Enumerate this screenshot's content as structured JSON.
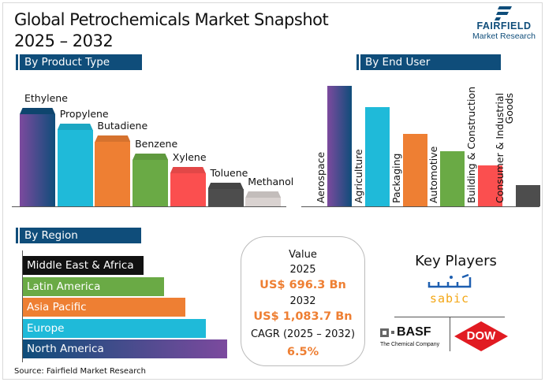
{
  "title_line1": "Global Petrochemicals Market Snapshot",
  "title_line2": "2025 – 2032",
  "logo": {
    "name": "FAIRFIELD",
    "sub": "Market Research"
  },
  "sections": {
    "product": "By Product Type",
    "end_user": "By End User",
    "region": "By Region"
  },
  "colors": {
    "navy": "#0f4d7a",
    "cyan": "#1fbad9",
    "orange": "#ee7f33",
    "green": "#6aaa45",
    "red": "#fb4f4f",
    "dark": "#4d4d4d",
    "light": "#d9d2d0",
    "purple": "#7c4a9e"
  },
  "chart_data": [
    {
      "type": "bar",
      "title": "By Product Type",
      "categories": [
        "Ethylene",
        "Propylene",
        "Butadiene",
        "Benzene",
        "Xylene",
        "Toluene",
        "Methanol"
      ],
      "values": [
        125,
        105,
        90,
        67,
        50,
        30,
        19
      ],
      "colors": [
        "grad",
        "#1fbad9",
        "#ee7f33",
        "#6aaa45",
        "#fb4f4f",
        "#4d4d4d",
        "#d9d2d0"
      ]
    },
    {
      "type": "bar",
      "title": "By End User",
      "categories": [
        "Aerospace",
        "Agriculture",
        "Packaging",
        "Automotive",
        "Building & Construction",
        "Consumer & Industrial Goods"
      ],
      "values": [
        153,
        126,
        92,
        70,
        52,
        27
      ],
      "colors": [
        "grad",
        "#1fbad9",
        "#ee7f33",
        "#6aaa45",
        "#fb4f4f",
        "#4d4d4d"
      ]
    },
    {
      "type": "bar",
      "orientation": "horizontal",
      "title": "By Region",
      "categories": [
        "Middle East & Africa",
        "Latin America",
        "Asia Pacific",
        "Europe",
        "North America"
      ],
      "values": [
        153,
        179,
        206,
        232,
        259
      ],
      "colors": [
        "#111111",
        "#6aaa45",
        "#ee7f33",
        "#1fbad9",
        "grad"
      ]
    }
  ],
  "value_box": {
    "label": "Value",
    "year1": "2025",
    "value1": "US$ 696.3 Bn",
    "year2": "2032",
    "value2": "US$ 1,083.7 Bn",
    "cagr_label": "CAGR (2025 – 2032)",
    "cagr": "6.5%"
  },
  "key_players": {
    "title": "Key Players",
    "sabic": "sabic",
    "basf": "BASF",
    "basf_sub": "The Chemical Company",
    "dow": "DOW"
  },
  "source": "Source: Fairfield Market Research"
}
